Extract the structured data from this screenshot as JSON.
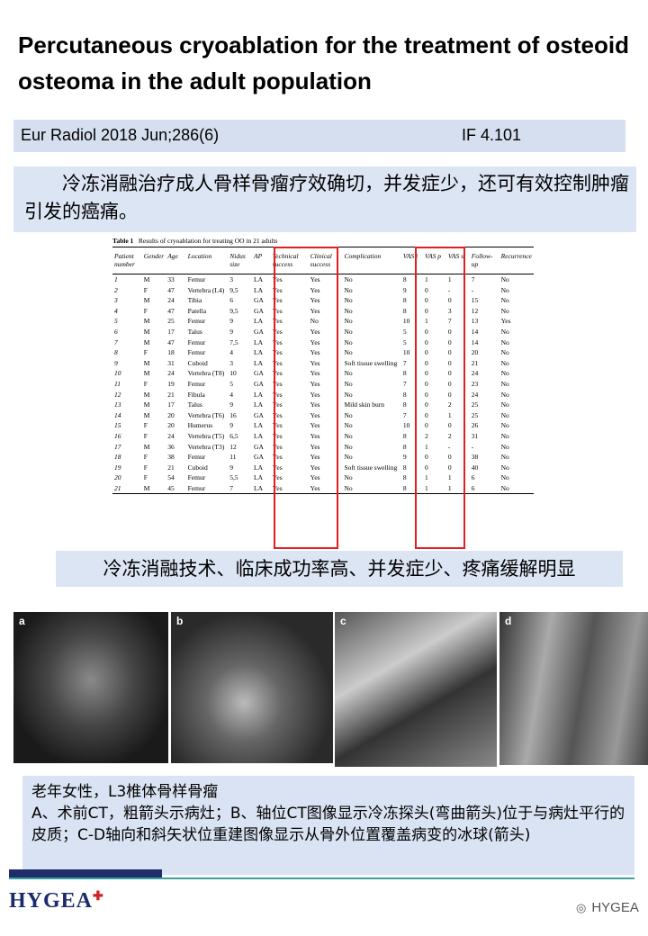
{
  "header": {
    "title": "Percutaneous cryoablation for the treatment of osteoid osteoma in the adult population"
  },
  "citation": {
    "journal": "Eur Radiol 2018 Jun;286(6)",
    "impact": "IF 4.101"
  },
  "summary": "冷冻消融治疗成人骨样骨瘤疗效确切，并发症少，还可有效控制肿瘤引发的癌痛。",
  "table": {
    "label": "Table 1",
    "caption": "Results of cryoablation for treating OO in 21 adults",
    "headers": [
      "Patient number",
      "Gender",
      "Age",
      "Location",
      "Nidus size",
      "AP",
      "Technical success",
      "Clinical success",
      "Complication",
      "VAS i",
      "VAS p",
      "VAS s",
      "Follow-up",
      "Recurrence"
    ],
    "rows": [
      [
        "1",
        "M",
        "33",
        "Femur",
        "3",
        "LA",
        "Yes",
        "Yes",
        "No",
        "8",
        "1",
        "1",
        "7",
        "No"
      ],
      [
        "2",
        "F",
        "47",
        "Vertebra (L4)",
        "9,5",
        "LA",
        "Yes",
        "Yes",
        "No",
        "9",
        "0",
        "-",
        "-",
        "No"
      ],
      [
        "3",
        "M",
        "24",
        "Tibia",
        "6",
        "GA",
        "Yes",
        "Yes",
        "No",
        "8",
        "0",
        "0",
        "15",
        "No"
      ],
      [
        "4",
        "F",
        "47",
        "Patella",
        "9,5",
        "GA",
        "Yes",
        "Yes",
        "No",
        "8",
        "0",
        "3",
        "12",
        "No"
      ],
      [
        "5",
        "M",
        "25",
        "Femur",
        "9",
        "LA",
        "Yes",
        "No",
        "No",
        "10",
        "1",
        "7",
        "13",
        "Yes"
      ],
      [
        "6",
        "M",
        "17",
        "Talus",
        "9",
        "GA",
        "Yes",
        "Yes",
        "No",
        "5",
        "0",
        "0",
        "14",
        "No"
      ],
      [
        "7",
        "M",
        "47",
        "Femur",
        "7,5",
        "LA",
        "Yes",
        "Yes",
        "No",
        "5",
        "0",
        "0",
        "14",
        "No"
      ],
      [
        "8",
        "F",
        "18",
        "Femur",
        "4",
        "LA",
        "Yes",
        "Yes",
        "No",
        "10",
        "0",
        "0",
        "20",
        "No"
      ],
      [
        "9",
        "M",
        "31",
        "Cuboid",
        "3",
        "LA",
        "Yes",
        "Yes",
        "Soft tissue swelling",
        "7",
        "0",
        "0",
        "21",
        "No"
      ],
      [
        "10",
        "M",
        "24",
        "Vertebra (T8)",
        "10",
        "GA",
        "Yes",
        "Yes",
        "No",
        "8",
        "0",
        "0",
        "24",
        "No"
      ],
      [
        "11",
        "F",
        "19",
        "Femur",
        "5",
        "GA",
        "Yes",
        "Yes",
        "No",
        "7",
        "0",
        "0",
        "23",
        "No"
      ],
      [
        "12",
        "M",
        "21",
        "Fibula",
        "4",
        "LA",
        "Yes",
        "Yes",
        "No",
        "8",
        "0",
        "0",
        "24",
        "No"
      ],
      [
        "13",
        "M",
        "17",
        "Talus",
        "9",
        "LA",
        "Yes",
        "Yes",
        "Mild skin burn",
        "8",
        "0",
        "2",
        "25",
        "No"
      ],
      [
        "14",
        "M",
        "20",
        "Vertebra (T6)",
        "16",
        "GA",
        "Yes",
        "Yes",
        "No",
        "7",
        "0",
        "1",
        "25",
        "No"
      ],
      [
        "15",
        "F",
        "20",
        "Humerus",
        "9",
        "LA",
        "Yes",
        "Yes",
        "No",
        "10",
        "0",
        "0",
        "26",
        "No"
      ],
      [
        "16",
        "F",
        "24",
        "Vertebra (T5)",
        "6,5",
        "LA",
        "Yes",
        "Yes",
        "No",
        "8",
        "2",
        "2",
        "31",
        "No"
      ],
      [
        "17",
        "M",
        "36",
        "Vertebra (T3)",
        "12",
        "GA",
        "Yes",
        "Yes",
        "No",
        "8",
        "1",
        "-",
        "-",
        "No"
      ],
      [
        "18",
        "F",
        "38",
        "Femur",
        "11",
        "GA",
        "Yes",
        "Yes",
        "No",
        "9",
        "0",
        "0",
        "38",
        "No"
      ],
      [
        "19",
        "F",
        "21",
        "Cuboid",
        "9",
        "LA",
        "Yes",
        "Yes",
        "Soft tissue swelling",
        "8",
        "0",
        "0",
        "40",
        "No"
      ],
      [
        "20",
        "F",
        "54",
        "Femur",
        "5,5",
        "LA",
        "Yes",
        "Yes",
        "No",
        "8",
        "1",
        "1",
        "6",
        "No"
      ],
      [
        "21",
        "M",
        "45",
        "Femur",
        "7",
        "LA",
        "Yes",
        "Yes",
        "No",
        "8",
        "1",
        "1",
        "6",
        "No"
      ]
    ]
  },
  "conclusion": "冷冻消融技术、临床成功率高、并发症少、疼痛缓解明显",
  "images": {
    "labels": [
      "a",
      "b",
      "c",
      "d"
    ]
  },
  "caption": {
    "line1": "老年女性，L3椎体骨样骨瘤",
    "body": "A、术前CT，粗箭头示病灶；B、轴位CT图像显示冷冻探头(弯曲箭头)位于与病灶平行的皮质；C-D轴向和斜矢状位重建图像显示从骨外位置覆盖病变的冰球(箭头)"
  },
  "footer": {
    "logo": "HYGEA",
    "account": "HYGEA"
  }
}
